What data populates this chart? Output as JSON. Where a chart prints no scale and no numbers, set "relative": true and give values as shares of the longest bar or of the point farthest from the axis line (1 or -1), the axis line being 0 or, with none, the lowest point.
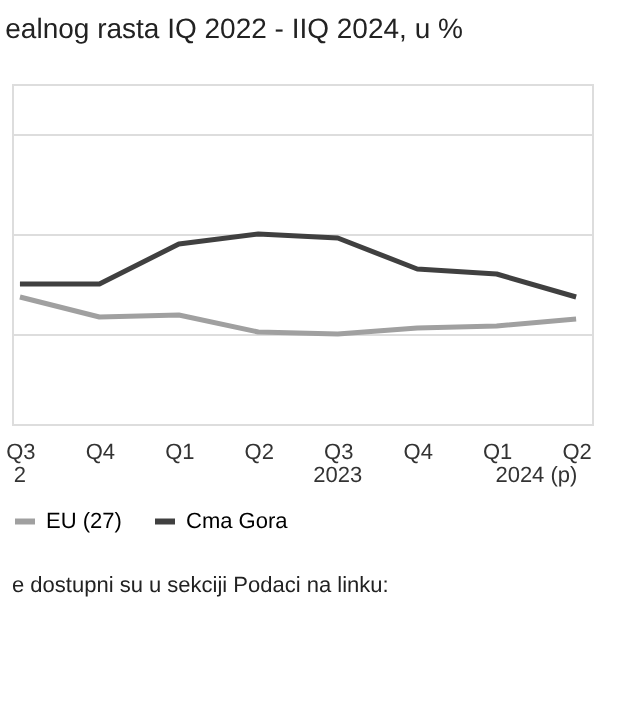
{
  "chart_data": {
    "type": "line",
    "title": "ealnog rasta IQ 2022 - IIQ 2024, u %",
    "categories": [
      "Q3",
      "Q4",
      "Q1",
      "Q2",
      "Q3",
      "Q4",
      "Q1",
      "Q2"
    ],
    "relative": true,
    "series": [
      {
        "name": "EU (27)",
        "color": "#a0a0a0",
        "values": [
          0.37,
          0.17,
          0.19,
          0.02,
          0,
          0.06,
          0.08,
          0.15
        ]
      },
      {
        "name": "Cma Gora",
        "color": "#404040",
        "values": [
          0.5,
          0.5,
          0.9,
          1,
          0.96,
          0.65,
          0.6,
          0.37
        ]
      }
    ],
    "annotations": [
      "2",
      "2023",
      "2024 (p)",
      "e dostupni su u sekciji Podaci na linku:"
    ],
    "grid": "y",
    "legend": "bottom",
    "marker": "none",
    "line_style": "solid"
  }
}
